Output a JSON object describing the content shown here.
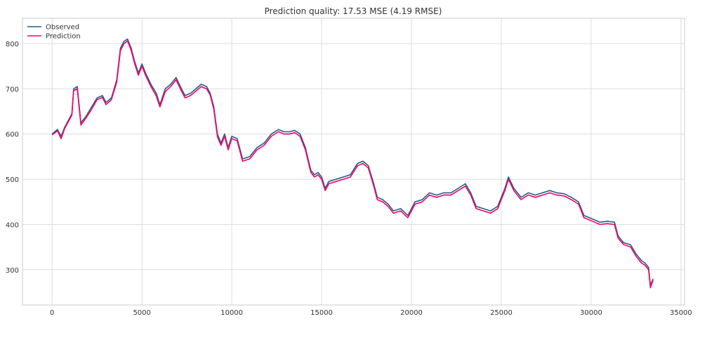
{
  "chart_data": {
    "type": "line",
    "title": "Prediction quality: 17.53 MSE (4.19 RMSE)",
    "xlabel": "",
    "ylabel": "",
    "xlim": [
      -1650,
      35200
    ],
    "ylim": [
      222,
      856
    ],
    "xticks": [
      0,
      5000,
      10000,
      15000,
      20000,
      25000,
      30000,
      35000
    ],
    "yticks": [
      300,
      400,
      500,
      600,
      700,
      800
    ],
    "grid": true,
    "legend_position": "top-left",
    "colors": {
      "observed": "#1f5f8b",
      "prediction": "#ff0066",
      "grid": "#dddddd",
      "axes_edge": "#cccccc"
    },
    "series": [
      {
        "name": "Observed",
        "x": [
          0,
          300,
          500,
          700,
          900,
          1100,
          1200,
          1400,
          1600,
          1900,
          2200,
          2500,
          2800,
          3000,
          3300,
          3600,
          3800,
          4000,
          4200,
          4400,
          4600,
          4800,
          5000,
          5200,
          5500,
          5800,
          6000,
          6300,
          6600,
          6900,
          7200,
          7400,
          7700,
          8000,
          8300,
          8600,
          8800,
          9000,
          9200,
          9400,
          9600,
          9800,
          10000,
          10300,
          10600,
          11000,
          11400,
          11800,
          12200,
          12600,
          12900,
          13200,
          13500,
          13800,
          14100,
          14400,
          14600,
          14800,
          15000,
          15200,
          15400,
          15800,
          16200,
          16600,
          17000,
          17300,
          17600,
          17900,
          18100,
          18400,
          18700,
          19000,
          19400,
          19800,
          20200,
          20600,
          21000,
          21400,
          21800,
          22200,
          22600,
          23000,
          23300,
          23600,
          24000,
          24400,
          24800,
          25200,
          25400,
          25700,
          26100,
          26500,
          26900,
          27300,
          27700,
          28100,
          28500,
          28900,
          29300,
          29600,
          29900,
          30200,
          30500,
          30900,
          31300,
          31500,
          31800,
          32200,
          32500,
          32800,
          33000,
          33200,
          33300,
          33450
        ],
        "values": [
          600,
          610,
          595,
          615,
          630,
          645,
          700,
          705,
          625,
          640,
          660,
          680,
          685,
          670,
          680,
          720,
          790,
          805,
          810,
          790,
          760,
          735,
          755,
          735,
          710,
          690,
          665,
          700,
          710,
          725,
          700,
          685,
          690,
          700,
          710,
          705,
          690,
          660,
          600,
          580,
          600,
          570,
          595,
          590,
          545,
          550,
          570,
          580,
          600,
          610,
          605,
          605,
          608,
          600,
          570,
          520,
          510,
          515,
          505,
          480,
          495,
          500,
          505,
          510,
          535,
          540,
          530,
          490,
          460,
          455,
          445,
          430,
          435,
          420,
          450,
          455,
          470,
          465,
          470,
          470,
          480,
          490,
          470,
          440,
          435,
          430,
          440,
          480,
          505,
          480,
          460,
          470,
          465,
          470,
          475,
          470,
          468,
          460,
          450,
          420,
          415,
          410,
          405,
          407,
          405,
          375,
          360,
          355,
          335,
          320,
          315,
          305,
          265,
          280
        ]
      },
      {
        "name": "Prediction",
        "x": [
          0,
          300,
          500,
          700,
          900,
          1100,
          1200,
          1400,
          1600,
          1900,
          2200,
          2500,
          2800,
          3000,
          3300,
          3600,
          3800,
          4000,
          4200,
          4400,
          4600,
          4800,
          5000,
          5200,
          5500,
          5800,
          6000,
          6300,
          6600,
          6900,
          7200,
          7400,
          7700,
          8000,
          8300,
          8600,
          8800,
          9000,
          9200,
          9400,
          9600,
          9800,
          10000,
          10300,
          10600,
          11000,
          11400,
          11800,
          12200,
          12600,
          12900,
          13200,
          13500,
          13800,
          14100,
          14400,
          14600,
          14800,
          15000,
          15200,
          15400,
          15800,
          16200,
          16600,
          17000,
          17300,
          17600,
          17900,
          18100,
          18400,
          18700,
          19000,
          19400,
          19800,
          20200,
          20600,
          21000,
          21400,
          21800,
          22200,
          22600,
          23000,
          23300,
          23600,
          24000,
          24400,
          24800,
          25200,
          25400,
          25700,
          26100,
          26500,
          26900,
          27300,
          27700,
          28100,
          28500,
          28900,
          29300,
          29600,
          29900,
          30200,
          30500,
          30900,
          31300,
          31500,
          31800,
          32200,
          32500,
          32800,
          33000,
          33200,
          33300,
          33450
        ],
        "values": [
          598,
          607,
          590,
          612,
          627,
          642,
          696,
          700,
          620,
          636,
          655,
          676,
          681,
          665,
          676,
          715,
          784,
          800,
          806,
          785,
          755,
          730,
          750,
          730,
          705,
          684,
          660,
          694,
          705,
          720,
          695,
          680,
          685,
          695,
          705,
          700,
          686,
          655,
          594,
          575,
          595,
          565,
          590,
          585,
          540,
          545,
          565,
          575,
          595,
          605,
          600,
          600,
          603,
          595,
          565,
          515,
          505,
          510,
          500,
          475,
          490,
          495,
          500,
          505,
          530,
          535,
          525,
          485,
          455,
          450,
          440,
          425,
          430,
          415,
          445,
          450,
          465,
          460,
          465,
          465,
          475,
          485,
          465,
          435,
          430,
          425,
          435,
          475,
          500,
          475,
          455,
          465,
          460,
          465,
          470,
          465,
          463,
          455,
          445,
          415,
          410,
          405,
          400,
          402,
          400,
          370,
          356,
          350,
          330,
          315,
          310,
          300,
          260,
          277
        ]
      }
    ]
  }
}
